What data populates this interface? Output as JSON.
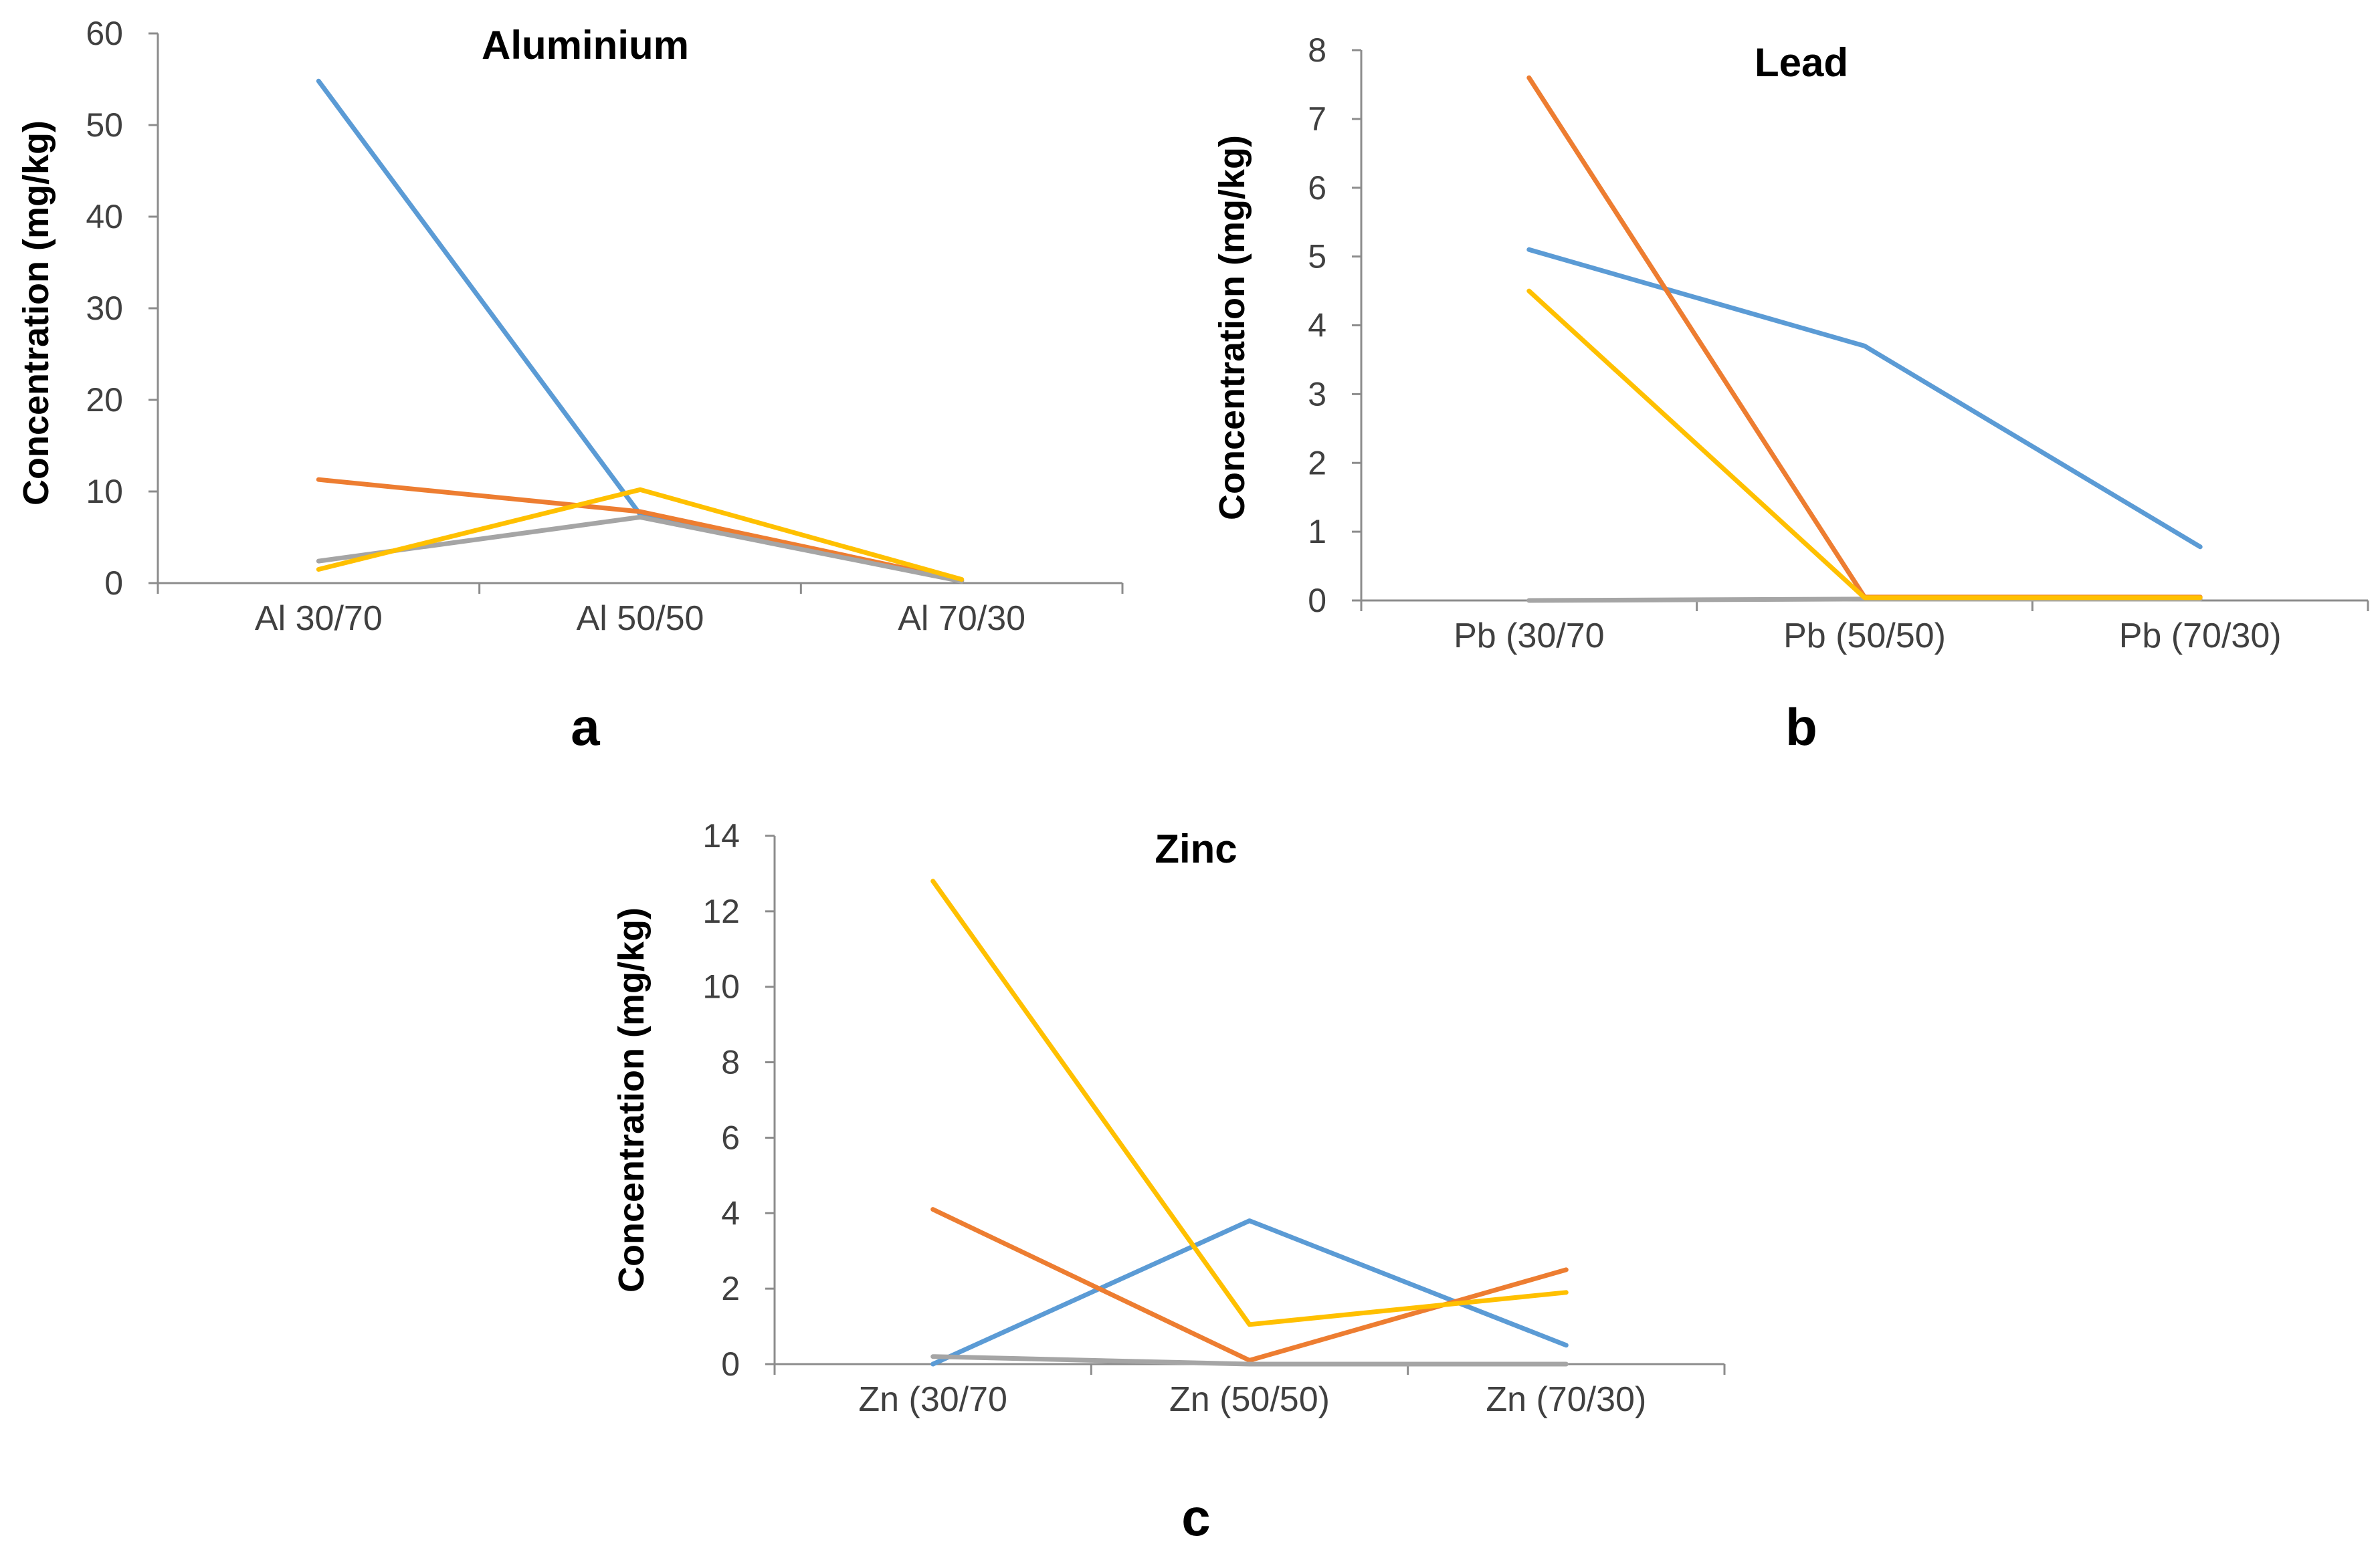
{
  "chart_data": [
    {
      "type": "line",
      "panel": "a",
      "title": "Aluminium",
      "ylabel": "Concentration  (mg/kg)",
      "xlabel": "",
      "ylim": [
        0,
        60
      ],
      "yticks": [
        0,
        10,
        20,
        30,
        40,
        50,
        60
      ],
      "grid": false,
      "categories": [
        "Al 30/70",
        "Al 50/50",
        "Al 70/30"
      ],
      "series": [
        {
          "name": "series-1",
          "color": "#5b9bd5",
          "values": [
            54.8,
            7.5,
            0.3
          ]
        },
        {
          "name": "series-2",
          "color": "#ed7d31",
          "values": [
            11.3,
            7.8,
            0.3
          ]
        },
        {
          "name": "series-3",
          "color": "#a5a5a5",
          "values": [
            2.4,
            7.2,
            0.2
          ]
        },
        {
          "name": "series-4",
          "color": "#ffc000",
          "values": [
            1.5,
            10.2,
            0.4
          ]
        }
      ]
    },
    {
      "type": "line",
      "panel": "b",
      "title": "Lead",
      "ylabel": "Concentration  (mg/kg)",
      "xlabel": "",
      "ylim": [
        0,
        8
      ],
      "yticks": [
        0,
        1,
        2,
        3,
        4,
        5,
        6,
        7,
        8
      ],
      "grid": false,
      "categories": [
        "Pb (30/70",
        "Pb (50/50)",
        "Pb (70/30)"
      ],
      "series": [
        {
          "name": "series-1",
          "color": "#5b9bd5",
          "values": [
            5.1,
            3.7,
            0.78
          ]
        },
        {
          "name": "series-2",
          "color": "#ed7d31",
          "values": [
            7.6,
            0.05,
            0.05
          ]
        },
        {
          "name": "series-3",
          "color": "#a5a5a5",
          "values": [
            0.0,
            0.02,
            0.02
          ]
        },
        {
          "name": "series-4",
          "color": "#ffc000",
          "values": [
            4.5,
            0.04,
            0.04
          ]
        }
      ]
    },
    {
      "type": "line",
      "panel": "c",
      "title": "Zinc",
      "ylabel": "Concentration  (mg/kg)",
      "xlabel": "",
      "ylim": [
        0,
        14
      ],
      "yticks": [
        0,
        2,
        4,
        6,
        8,
        10,
        12,
        14
      ],
      "grid": false,
      "categories": [
        "Zn (30/70",
        "Zn (50/50)",
        "Zn (70/30)"
      ],
      "series": [
        {
          "name": "series-1",
          "color": "#5b9bd5",
          "values": [
            0.0,
            3.8,
            0.5
          ]
        },
        {
          "name": "series-2",
          "color": "#ed7d31",
          "values": [
            4.1,
            0.1,
            2.5
          ]
        },
        {
          "name": "series-3",
          "color": "#a5a5a5",
          "values": [
            0.2,
            0.0,
            0.0
          ]
        },
        {
          "name": "series-4",
          "color": "#ffc000",
          "values": [
            12.8,
            1.05,
            1.9
          ]
        }
      ]
    }
  ]
}
